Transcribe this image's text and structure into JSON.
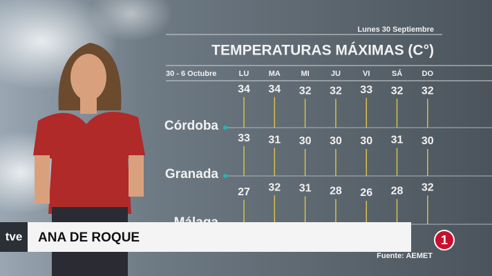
{
  "header": {
    "date": "Lunes 30 Septiembre",
    "title": "TEMPERATURAS MÁXIMAS (C°)",
    "period": "30 - 6 Octubre"
  },
  "days": [
    "LU",
    "MA",
    "MI",
    "JU",
    "VI",
    "SÁ",
    "DO"
  ],
  "cities": [
    {
      "name": "Córdoba",
      "values": [
        34,
        34,
        32,
        32,
        33,
        32,
        32
      ]
    },
    {
      "name": "Granada",
      "values": [
        33,
        31,
        30,
        30,
        30,
        31,
        30
      ]
    },
    {
      "name": "Málaga",
      "values": [
        27,
        32,
        31,
        28,
        26,
        28,
        32
      ]
    }
  ],
  "lower_third": {
    "channel": "tve",
    "name": "ANA DE ROQUE",
    "channel_number": "1"
  },
  "source": "Fuente: AEMET"
}
